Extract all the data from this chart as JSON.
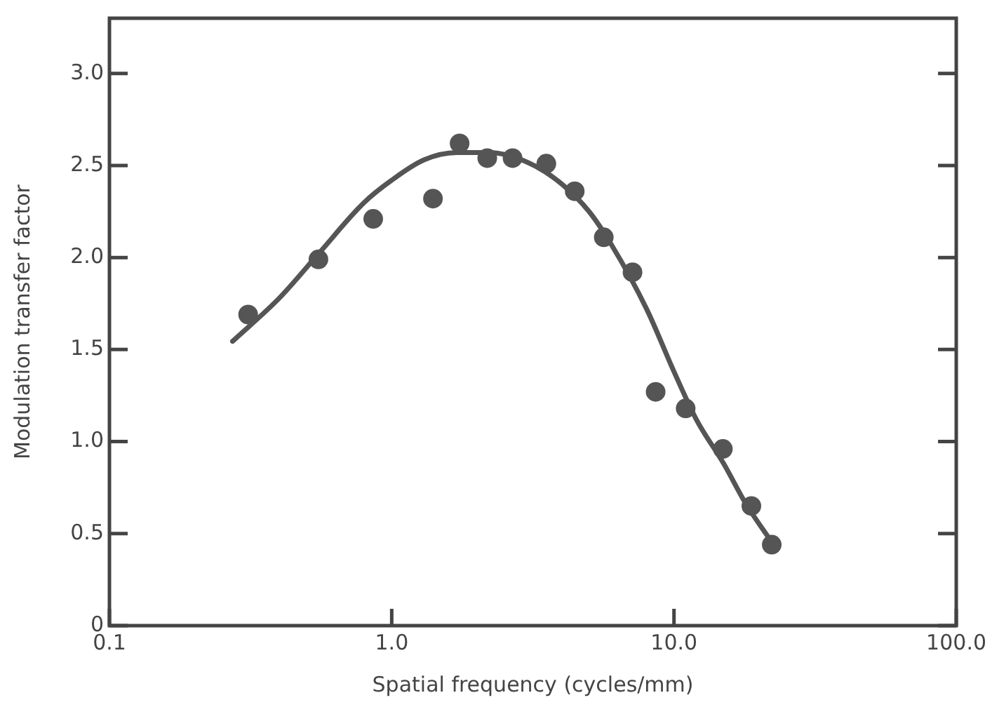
{
  "chart_data": {
    "type": "scatter",
    "xlabel": "Spatial frequency (cycles/mm)",
    "ylabel": "Modulation transfer factor",
    "log": "x",
    "xlim": [
      0.1,
      100
    ],
    "ylim": [
      0,
      3.3
    ],
    "xticks": [
      0.1,
      {
        "value": 1,
        "label": "1.0"
      },
      {
        "value": 10,
        "label": "10.0"
      },
      {
        "value": 100,
        "label": "100.0"
      }
    ],
    "yticks": [
      0,
      0.5,
      {
        "value": 1,
        "label": "1.0"
      },
      1.5,
      {
        "value": 2,
        "label": "2.0"
      },
      2.5,
      {
        "value": 3,
        "label": "3.0"
      }
    ],
    "grid": false,
    "legend": false,
    "series": [
      {
        "color": "#555555",
        "marker": "circle",
        "x": [
          0.31,
          0.55,
          0.86,
          1.4,
          1.74,
          2.18,
          2.68,
          3.53,
          4.45,
          5.64,
          7.13,
          8.61,
          11.0,
          14.9,
          18.8,
          22.2
        ],
        "values": [
          1.69,
          1.99,
          2.21,
          2.32,
          2.62,
          2.54,
          2.54,
          2.51,
          2.36,
          2.11,
          1.92,
          1.27,
          1.18,
          0.96,
          0.65,
          0.44
        ]
      },
      {
        "type": "line",
        "color": "#555555",
        "marker": "none",
        "line_style": "solid",
        "x": [
          0.273,
          0.4,
          0.55,
          0.8,
          1.0,
          1.3,
          1.7,
          2.2,
          3.0,
          4.0,
          5.0,
          6.0,
          8.0,
          10.0,
          12.0,
          15.0,
          18.0,
          21.6
        ],
        "values": [
          1.545,
          1.78,
          2.02,
          2.3,
          2.42,
          2.53,
          2.57,
          2.57,
          2.52,
          2.4,
          2.25,
          2.07,
          1.72,
          1.38,
          1.12,
          0.88,
          0.66,
          0.48
        ]
      }
    ]
  }
}
